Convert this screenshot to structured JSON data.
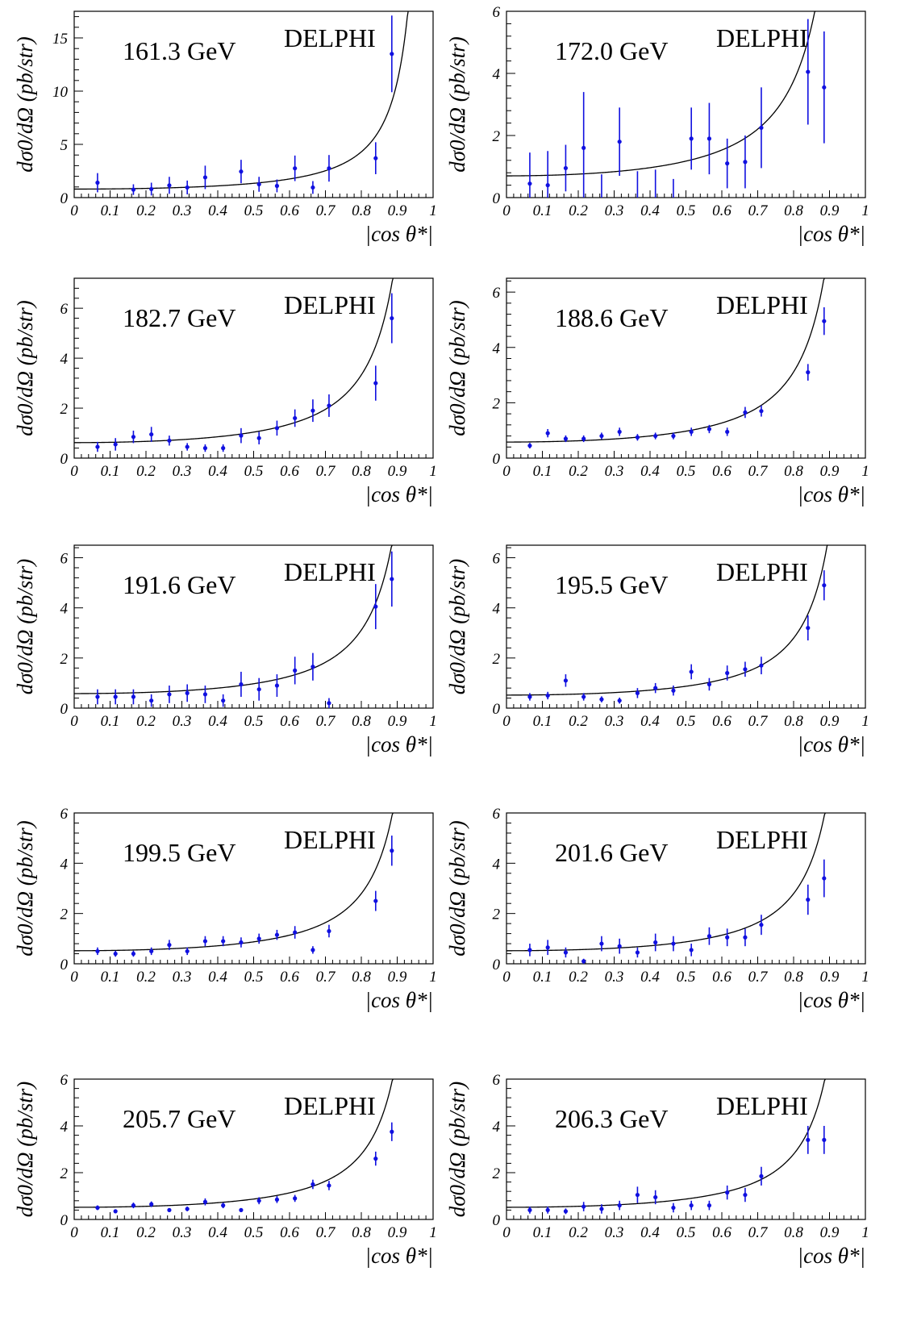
{
  "chart_data": [
    {
      "type": "scatter",
      "energy_label": "161.3 GeV",
      "experiment_label": "DELPHI",
      "ylabel": "dσ0/dΩ (pb/str)",
      "xlabel": "|cos θ*|",
      "xlim": [
        0,
        1
      ],
      "ylim": [
        0,
        17.5
      ],
      "x_ticks": [
        "0",
        "0.1",
        "0.2",
        "0.3",
        "0.4",
        "0.5",
        "0.6",
        "0.7",
        "0.8",
        "0.9",
        "1"
      ],
      "y_ticks": [
        "0",
        "5",
        "10",
        "15"
      ],
      "series": [
        {
          "x": [
            0.065,
            0.165,
            0.215,
            0.265,
            0.315,
            0.365,
            0.465,
            0.515,
            0.565,
            0.615,
            0.665,
            0.71,
            0.84,
            0.885
          ],
          "y": [
            1.4,
            0.75,
            0.8,
            1.15,
            0.95,
            1.9,
            2.45,
            1.25,
            1.1,
            2.75,
            0.95,
            2.75,
            3.7,
            13.5
          ],
          "err": [
            0.9,
            0.5,
            0.6,
            0.8,
            0.65,
            1.1,
            1.1,
            0.7,
            0.6,
            1.2,
            0.6,
            1.25,
            1.5,
            3.6
          ]
        }
      ],
      "curve": "fit"
    },
    {
      "type": "scatter",
      "energy_label": "172.0 GeV",
      "experiment_label": "DELPHI",
      "ylabel": "dσ0/dΩ (pb/str)",
      "xlabel": "|cos θ*|",
      "xlim": [
        0,
        1
      ],
      "ylim": [
        0,
        6
      ],
      "x_ticks": [
        "0",
        "0.1",
        "0.2",
        "0.3",
        "0.4",
        "0.5",
        "0.6",
        "0.7",
        "0.8",
        "0.9",
        "1"
      ],
      "y_ticks": [
        "0",
        "2",
        "4",
        "6"
      ],
      "series": [
        {
          "x": [
            0.065,
            0.115,
            0.165,
            0.215,
            0.265,
            0.315,
            0.365,
            0.415,
            0.465,
            0.515,
            0.565,
            0.615,
            0.665,
            0.71,
            0.84,
            0.885
          ],
          "y": [
            0.45,
            0.4,
            0.95,
            1.6,
            0.0,
            1.8,
            0.0,
            0.0,
            0.0,
            1.9,
            1.9,
            1.1,
            1.15,
            2.25,
            4.05,
            3.55
          ],
          "err": [
            1.0,
            1.1,
            0.75,
            1.8,
            0.75,
            1.1,
            0.85,
            0.9,
            0.6,
            1.0,
            1.15,
            0.8,
            0.85,
            1.3,
            1.7,
            1.8
          ]
        }
      ],
      "curve": "fit"
    },
    {
      "type": "scatter",
      "energy_label": "182.7 GeV",
      "experiment_label": "DELPHI",
      "ylabel": "dσ0/dΩ (pb/str)",
      "xlabel": "|cos θ*|",
      "xlim": [
        0,
        1
      ],
      "ylim": [
        0,
        7.2
      ],
      "x_ticks": [
        "0",
        "0.1",
        "0.2",
        "0.3",
        "0.4",
        "0.5",
        "0.6",
        "0.7",
        "0.8",
        "0.9",
        "1"
      ],
      "y_ticks": [
        "0",
        "2",
        "4",
        "6"
      ],
      "series": [
        {
          "x": [
            0.065,
            0.115,
            0.165,
            0.215,
            0.265,
            0.315,
            0.365,
            0.415,
            0.465,
            0.515,
            0.565,
            0.615,
            0.665,
            0.71,
            0.84,
            0.885
          ],
          "y": [
            0.45,
            0.55,
            0.85,
            0.95,
            0.7,
            0.45,
            0.4,
            0.4,
            0.9,
            0.8,
            1.2,
            1.6,
            1.9,
            2.1,
            3.0,
            5.6
          ],
          "err": [
            0.2,
            0.25,
            0.25,
            0.3,
            0.2,
            0.15,
            0.15,
            0.15,
            0.3,
            0.25,
            0.3,
            0.35,
            0.45,
            0.45,
            0.7,
            1.0
          ]
        }
      ],
      "curve": "fit"
    },
    {
      "type": "scatter",
      "energy_label": "188.6 GeV",
      "experiment_label": "DELPHI",
      "ylabel": "dσ0/dΩ (pb/str)",
      "xlabel": "|cos θ*|",
      "xlim": [
        0,
        1
      ],
      "ylim": [
        0,
        6.5
      ],
      "x_ticks": [
        "0",
        "0.1",
        "0.2",
        "0.3",
        "0.4",
        "0.5",
        "0.6",
        "0.7",
        "0.8",
        "0.9",
        "1"
      ],
      "y_ticks": [
        "0",
        "2",
        "4",
        "6"
      ],
      "series": [
        {
          "x": [
            0.065,
            0.115,
            0.165,
            0.215,
            0.265,
            0.315,
            0.365,
            0.415,
            0.465,
            0.515,
            0.565,
            0.615,
            0.665,
            0.71,
            0.84,
            0.885
          ],
          "y": [
            0.45,
            0.9,
            0.7,
            0.7,
            0.8,
            0.95,
            0.75,
            0.8,
            0.8,
            0.95,
            1.05,
            0.95,
            1.65,
            1.7,
            3.1,
            4.95
          ],
          "err": [
            0.1,
            0.15,
            0.12,
            0.12,
            0.12,
            0.15,
            0.12,
            0.12,
            0.12,
            0.15,
            0.15,
            0.15,
            0.2,
            0.2,
            0.3,
            0.5
          ]
        }
      ],
      "curve": "fit"
    },
    {
      "type": "scatter",
      "energy_label": "191.6 GeV",
      "experiment_label": "DELPHI",
      "ylabel": "dσ0/dΩ (pb/str)",
      "xlabel": "|cos θ*|",
      "xlim": [
        0,
        1
      ],
      "ylim": [
        0,
        6.5
      ],
      "x_ticks": [
        "0",
        "0.1",
        "0.2",
        "0.3",
        "0.4",
        "0.5",
        "0.6",
        "0.7",
        "0.8",
        "0.9",
        "1"
      ],
      "y_ticks": [
        "0",
        "2",
        "4",
        "6"
      ],
      "series": [
        {
          "x": [
            0.065,
            0.115,
            0.165,
            0.215,
            0.265,
            0.315,
            0.365,
            0.415,
            0.465,
            0.515,
            0.565,
            0.615,
            0.665,
            0.71,
            0.84,
            0.885
          ],
          "y": [
            0.45,
            0.45,
            0.45,
            0.3,
            0.55,
            0.6,
            0.55,
            0.3,
            0.95,
            0.75,
            0.9,
            1.5,
            1.65,
            0.2,
            4.05,
            5.15
          ],
          "err": [
            0.3,
            0.3,
            0.3,
            0.25,
            0.35,
            0.35,
            0.35,
            0.25,
            0.5,
            0.45,
            0.45,
            0.55,
            0.55,
            0.2,
            0.9,
            1.1
          ]
        }
      ],
      "curve": "fit"
    },
    {
      "type": "scatter",
      "energy_label": "195.5 GeV",
      "experiment_label": "DELPHI",
      "ylabel": "dσ0/dΩ (pb/str)",
      "xlabel": "|cos θ*|",
      "xlim": [
        0,
        1
      ],
      "ylim": [
        0,
        6.5
      ],
      "x_ticks": [
        "0",
        "0.1",
        "0.2",
        "0.3",
        "0.4",
        "0.5",
        "0.6",
        "0.7",
        "0.8",
        "0.9",
        "1"
      ],
      "y_ticks": [
        "0",
        "2",
        "4",
        "6"
      ],
      "series": [
        {
          "x": [
            0.065,
            0.115,
            0.165,
            0.215,
            0.265,
            0.315,
            0.365,
            0.415,
            0.465,
            0.515,
            0.565,
            0.615,
            0.665,
            0.71,
            0.84,
            0.885
          ],
          "y": [
            0.45,
            0.5,
            1.1,
            0.45,
            0.35,
            0.3,
            0.6,
            0.8,
            0.7,
            1.45,
            0.95,
            1.4,
            1.55,
            1.7,
            3.2,
            4.9
          ],
          "err": [
            0.15,
            0.15,
            0.25,
            0.15,
            0.12,
            0.12,
            0.2,
            0.2,
            0.2,
            0.3,
            0.25,
            0.3,
            0.3,
            0.35,
            0.5,
            0.6
          ]
        }
      ],
      "curve": "fit"
    },
    {
      "type": "scatter",
      "energy_label": "199.5 GeV",
      "experiment_label": "DELPHI",
      "ylabel": "dσ0/dΩ (pb/str)",
      "xlabel": "|cos θ*|",
      "xlim": [
        0,
        1
      ],
      "ylim": [
        0,
        6
      ],
      "x_ticks": [
        "0",
        "0.1",
        "0.2",
        "0.3",
        "0.4",
        "0.5",
        "0.6",
        "0.7",
        "0.8",
        "0.9",
        "1"
      ],
      "y_ticks": [
        "0",
        "2",
        "4",
        "6"
      ],
      "series": [
        {
          "x": [
            0.065,
            0.115,
            0.165,
            0.215,
            0.265,
            0.315,
            0.365,
            0.415,
            0.465,
            0.515,
            0.565,
            0.615,
            0.665,
            0.71,
            0.84,
            0.885
          ],
          "y": [
            0.5,
            0.4,
            0.4,
            0.5,
            0.75,
            0.5,
            0.9,
            0.9,
            0.85,
            1.0,
            1.15,
            1.25,
            0.55,
            1.3,
            2.5,
            4.5
          ],
          "err": [
            0.15,
            0.12,
            0.12,
            0.15,
            0.2,
            0.15,
            0.2,
            0.2,
            0.2,
            0.2,
            0.2,
            0.25,
            0.15,
            0.25,
            0.4,
            0.6
          ]
        }
      ],
      "curve": "fit"
    },
    {
      "type": "scatter",
      "energy_label": "201.6 GeV",
      "experiment_label": "DELPHI",
      "ylabel": "dσ0/dΩ (pb/str)",
      "xlabel": "|cos θ*|",
      "xlim": [
        0,
        1
      ],
      "ylim": [
        0,
        6
      ],
      "x_ticks": [
        "0",
        "0.1",
        "0.2",
        "0.3",
        "0.4",
        "0.5",
        "0.6",
        "0.7",
        "0.8",
        "0.9",
        "1"
      ],
      "y_ticks": [
        "0",
        "2",
        "4",
        "6"
      ],
      "series": [
        {
          "x": [
            0.065,
            0.115,
            0.165,
            0.215,
            0.265,
            0.315,
            0.365,
            0.415,
            0.465,
            0.515,
            0.565,
            0.615,
            0.665,
            0.71,
            0.84,
            0.885
          ],
          "y": [
            0.55,
            0.65,
            0.45,
            0.1,
            0.8,
            0.7,
            0.45,
            0.85,
            0.8,
            0.55,
            1.1,
            1.05,
            1.05,
            1.55,
            2.55,
            3.4
          ],
          "err": [
            0.25,
            0.3,
            0.2,
            0.1,
            0.3,
            0.3,
            0.2,
            0.35,
            0.3,
            0.25,
            0.35,
            0.35,
            0.35,
            0.4,
            0.6,
            0.75
          ]
        }
      ],
      "curve": "fit"
    },
    {
      "type": "scatter",
      "energy_label": "205.7 GeV",
      "experiment_label": "DELPHI",
      "ylabel": "dσ0/dΩ (pb/str)",
      "xlabel": "|cos θ*|",
      "xlim": [
        0,
        1
      ],
      "ylim": [
        0,
        6
      ],
      "x_ticks": [
        "0",
        "0.1",
        "0.2",
        "0.3",
        "0.4",
        "0.5",
        "0.6",
        "0.7",
        "0.8",
        "0.9",
        "1"
      ],
      "y_ticks": [
        "0",
        "2",
        "4",
        "6"
      ],
      "series": [
        {
          "x": [
            0.065,
            0.115,
            0.165,
            0.215,
            0.265,
            0.315,
            0.365,
            0.415,
            0.465,
            0.515,
            0.565,
            0.615,
            0.665,
            0.71,
            0.84,
            0.885
          ],
          "y": [
            0.5,
            0.35,
            0.6,
            0.65,
            0.4,
            0.45,
            0.75,
            0.6,
            0.4,
            0.8,
            0.85,
            0.9,
            1.5,
            1.45,
            2.6,
            3.75
          ],
          "err": [
            0.1,
            0.08,
            0.12,
            0.12,
            0.08,
            0.1,
            0.15,
            0.12,
            0.08,
            0.15,
            0.15,
            0.15,
            0.2,
            0.2,
            0.3,
            0.4
          ]
        }
      ],
      "curve": "fit"
    },
    {
      "type": "scatter",
      "energy_label": "206.3 GeV",
      "experiment_label": "DELPHI",
      "ylabel": "dσ0/dΩ (pb/str)",
      "xlabel": "|cos θ*|",
      "xlim": [
        0,
        1
      ],
      "ylim": [
        0,
        6
      ],
      "x_ticks": [
        "0",
        "0.1",
        "0.2",
        "0.3",
        "0.4",
        "0.5",
        "0.6",
        "0.7",
        "0.8",
        "0.9",
        "1"
      ],
      "y_ticks": [
        "0",
        "2",
        "4",
        "6"
      ],
      "series": [
        {
          "x": [
            0.065,
            0.115,
            0.165,
            0.215,
            0.265,
            0.315,
            0.365,
            0.415,
            0.465,
            0.515,
            0.565,
            0.615,
            0.665,
            0.71,
            0.84,
            0.885
          ],
          "y": [
            0.4,
            0.4,
            0.35,
            0.55,
            0.45,
            0.6,
            1.05,
            0.95,
            0.5,
            0.6,
            0.6,
            1.15,
            1.05,
            1.85,
            3.4,
            3.4
          ],
          "err": [
            0.15,
            0.15,
            0.12,
            0.2,
            0.2,
            0.2,
            0.35,
            0.3,
            0.2,
            0.2,
            0.2,
            0.3,
            0.3,
            0.4,
            0.6,
            0.6
          ]
        }
      ],
      "curve": "fit"
    }
  ],
  "colors": {
    "points": "#1010e0",
    "curve": "#000000",
    "axes": "#000000",
    "background": "#ffffff"
  }
}
